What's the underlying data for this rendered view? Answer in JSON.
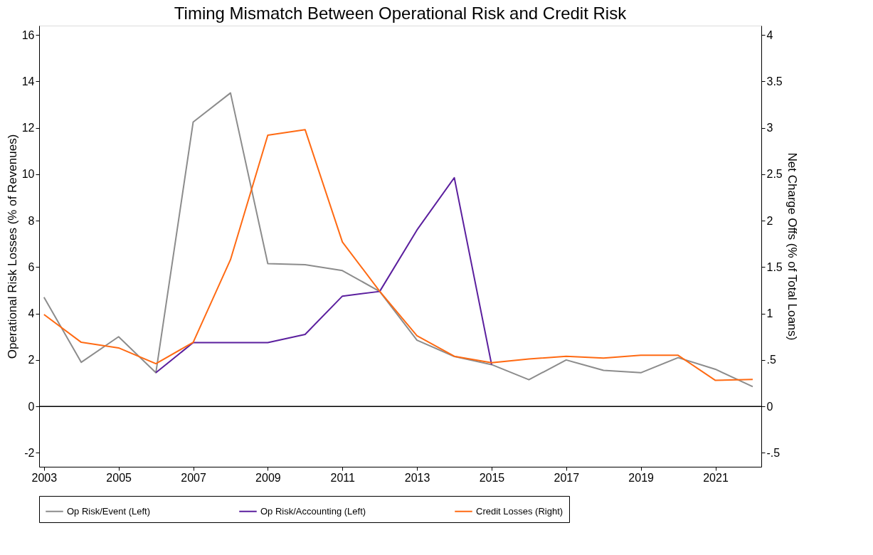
{
  "chart_data": {
    "type": "line",
    "title": "Timing Mismatch Between Operational Risk and Credit Risk",
    "ylabel": "Operational Risk Losses (% of Revenues)",
    "y2label": "Net Charge Offs (% of Total Loans)",
    "x": [
      2003,
      2004,
      2005,
      2006,
      2007,
      2008,
      2009,
      2010,
      2011,
      2012,
      2013,
      2014,
      2015,
      2016,
      2017,
      2018,
      2019,
      2020,
      2021,
      2022
    ],
    "series": [
      {
        "name": "Op Risk/Event (Left)",
        "color": "#8c8c8c",
        "values": [
          4.7,
          1.9,
          3.0,
          1.45,
          12.25,
          13.5,
          6.15,
          6.1,
          5.85,
          4.95,
          2.85,
          2.15,
          1.8,
          1.15,
          2.0,
          1.55,
          1.45,
          2.1,
          1.6,
          0.85
        ]
      },
      {
        "name": "Op Risk/Accounting (Left)",
        "color": "#5b1f9e",
        "values": [
          null,
          null,
          null,
          1.45,
          2.75,
          2.75,
          2.75,
          3.1,
          4.75,
          4.95,
          7.6,
          9.85,
          1.8,
          null,
          null,
          null,
          null,
          null,
          null,
          null
        ]
      },
      {
        "name": "Credit Losses (Right)",
        "color": "#ff6a13",
        "axis": "y2",
        "values": [
          0.99,
          0.69,
          0.63,
          0.46,
          0.69,
          1.58,
          2.92,
          2.98,
          1.77,
          1.24,
          0.76,
          0.54,
          0.47,
          0.51,
          0.54,
          0.52,
          0.55,
          0.55,
          0.28,
          0.29
        ]
      }
    ],
    "xlim": [
      2002.87,
      2022.23
    ],
    "xticks": [
      2003,
      2005,
      2007,
      2009,
      2011,
      2013,
      2015,
      2017,
      2019,
      2021
    ],
    "ylim": [
      -2.6,
      16.4
    ],
    "yticks": [
      -2,
      0,
      2,
      4,
      6,
      8,
      10,
      12,
      14,
      16
    ],
    "y2lim": [
      -0.65,
      4.1
    ],
    "y2ticks": [
      {
        "value": -0.5,
        "label": "-.5"
      },
      0,
      {
        "value": 0.5,
        "label": ".5"
      },
      1,
      1.5,
      2,
      2.5,
      3,
      3.5,
      4
    ],
    "ref_lines": [
      {
        "axis": "y",
        "value": 0,
        "color": "#000000"
      }
    ],
    "grid": false,
    "legend": "bottom",
    "marker": "none",
    "line_style": "solid"
  }
}
